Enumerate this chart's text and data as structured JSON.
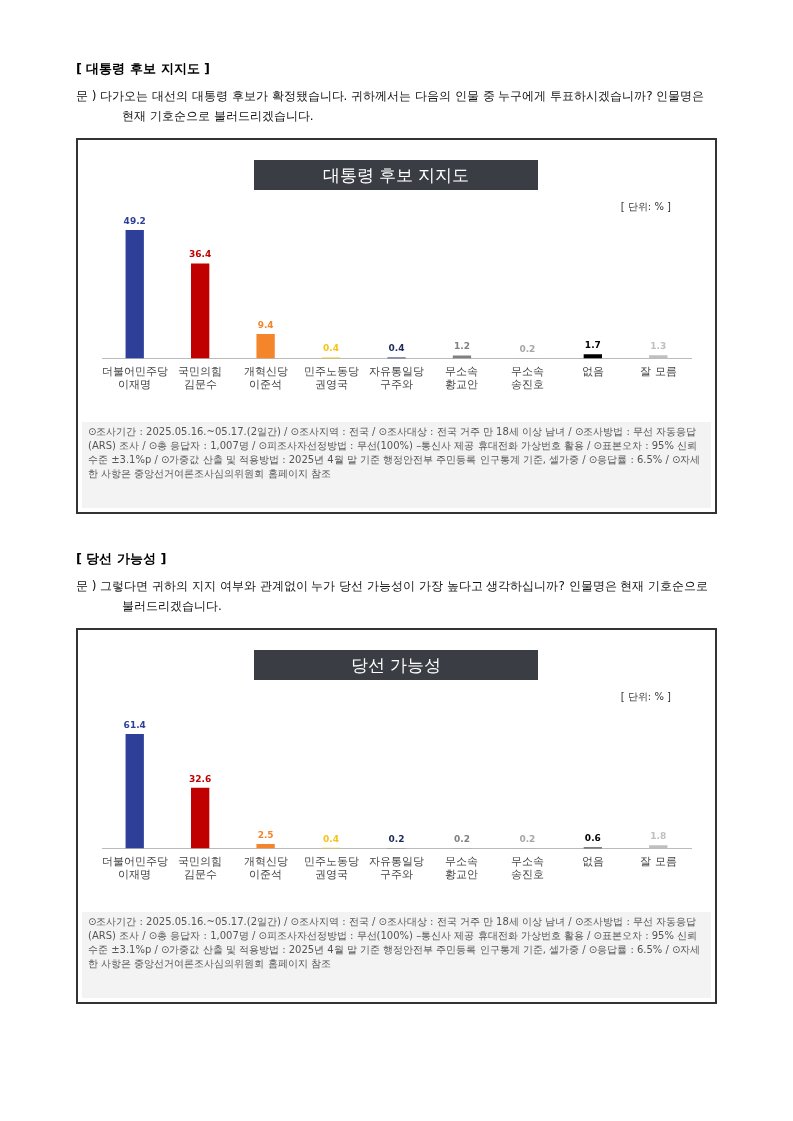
{
  "chart_data": [
    {
      "type": "bar",
      "title": "대통령 후보 지지도",
      "subtitle": "문 )  다가오는 대선의 대통령 후보가 확정됐습니다. 귀하께서는 다음의 인물 중 누구에게 투표하시겠습니까? 인물명은 현재 기호순으로 불러드리겠습니다.",
      "categories": [
        "더불어민주당\n이재명",
        "국민의힘\n김문수",
        "개혁신당\n이준석",
        "민주노동당\n권영국",
        "자유통일당\n구주와",
        "무소속\n황교안",
        "무소속\n송진호",
        "없음",
        "잘 모름"
      ],
      "values": [
        49.2,
        36.4,
        9.4,
        0.4,
        0.4,
        1.2,
        0.2,
        1.7,
        1.3
      ],
      "colors": [
        "#2e3f9a",
        "#c00000",
        "#f5852b",
        "#f5c518",
        "#1f2a5a",
        "#808080",
        "#a6a6a6",
        "#000000",
        "#bfbfbf"
      ],
      "data_labels": true,
      "grid": false,
      "legend": false,
      "annotations": [
        "[ 대통령 후보 지지도 ]",
        "[ 단위: % ]",
        "⊙조사기간 : 2025.05.16.~05.17.(2일간) / ⊙조사지역 : 전국 / ⊙조사대상 : 전국 거주 만 18세 이상 남녀 / ⊙조사방법 : 무선 자동응답(ARS) 조사 / ⊙총 응답자 : 1,007명 / ⊙피조사자선정방법 : 무선(100%) –통신사 제공 휴대전화 가상번호 활용 / ⊙표본오차 : 95% 신뢰수준 ±3.1%p / ⊙가중값 산출 및 적용방법 : 2025년 4월 말 기준 행정안전부 주민등록 인구통계 기준, 셀가중 / ⊙응답률 : 6.5% / ⊙자세한 사항은 중앙선거여론조사심의위원회 홈페이지 참조"
      ]
    },
    {
      "type": "bar",
      "title": "당선 가능성",
      "subtitle": "문 )  그렇다면 귀하의 지지 여부와 관계없이 누가 당선 가능성이 가장 높다고 생각하십니까? 인물명은 현재 기호순으로 불러드리겠습니다.",
      "categories": [
        "더불어민주당\n이재명",
        "국민의힘\n김문수",
        "개혁신당\n이준석",
        "민주노동당\n권영국",
        "자유통일당\n구주와",
        "무소속\n황교안",
        "무소속\n송진호",
        "없음",
        "잘 모름"
      ],
      "values": [
        61.4,
        32.6,
        2.5,
        0.4,
        0.2,
        0.2,
        0.2,
        0.6,
        1.8
      ],
      "colors": [
        "#2e3f9a",
        "#c00000",
        "#f5852b",
        "#f5c518",
        "#1f2a5a",
        "#808080",
        "#a6a6a6",
        "#000000",
        "#bfbfbf"
      ],
      "data_labels": true,
      "grid": false,
      "legend": false,
      "annotations": [
        "[ 당선 가능성 ]",
        "[ 단위: % ]",
        "⊙조사기간 : 2025.05.16.~05.17.(2일간) / ⊙조사지역 : 전국 / ⊙조사대상 : 전국 거주 만 18세 이상 남녀 / ⊙조사방법 : 무선 자동응답(ARS) 조사 / ⊙총 응답자 : 1,007명 / ⊙피조사자선정방법 : 무선(100%) –통신사 제공 휴대전화 가상번호 활용 / ⊙표본오차 : 95% 신뢰수준 ±3.1%p / ⊙가중값 산출 및 적용방법 : 2025년 4월 말 기준 행정안전부 주민등록 인구통계 기준, 셀가중 / ⊙응답률 : 6.5% / ⊙자세한 사항은 중앙선거여론조사심의위원회 홈페이지 참조"
      ]
    }
  ]
}
